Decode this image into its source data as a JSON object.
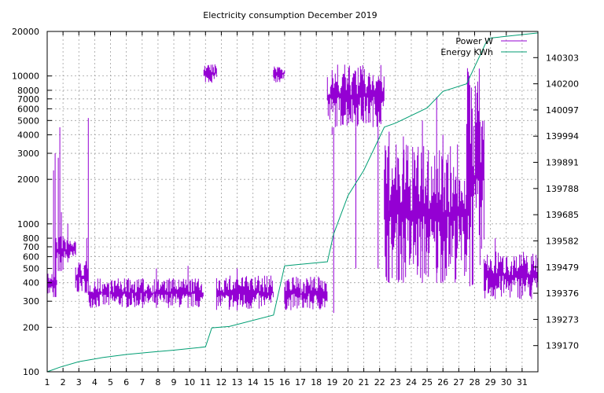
{
  "chart_data": {
    "type": "line",
    "title": "Electricity consumption December 2019",
    "x_ticks": [
      "1",
      "2",
      "3",
      "4",
      "5",
      "6",
      "7",
      "8",
      "9",
      "10",
      "11",
      "12",
      "13",
      "14",
      "15",
      "16",
      "17",
      "18",
      "19",
      "20",
      "21",
      "22",
      "23",
      "24",
      "25",
      "26",
      "27",
      "28",
      "29",
      "30",
      "31"
    ],
    "xlim": [
      1,
      32
    ],
    "y_left": {
      "scale": "log",
      "ylim": [
        100,
        20000
      ],
      "ticks": [
        100,
        200,
        300,
        400,
        500,
        600,
        700,
        800,
        1000,
        2000,
        3000,
        4000,
        5000,
        6000,
        7000,
        8000,
        10000,
        20000
      ],
      "tick_labels": [
        "100",
        "200",
        "300",
        "400",
        "500",
        "600",
        "700",
        "800",
        "1000",
        "2000",
        "3000",
        "4000",
        "5000",
        "6000",
        "7000",
        "8000",
        "10000",
        "20000"
      ]
    },
    "y_right": {
      "scale": "linear",
      "ylim": [
        139067,
        140406
      ],
      "ticks": [
        139170,
        139273,
        139376,
        139479,
        139582,
        139685,
        139788,
        139891,
        139994,
        140097,
        140200,
        140303
      ],
      "tick_labels": [
        "139170",
        "139273",
        "139376",
        "139479",
        "139582",
        "139685",
        "139788",
        "139891",
        "139994",
        "140097",
        "140200",
        "140303"
      ]
    },
    "grid": true,
    "legend_position": "top-right",
    "series": [
      {
        "name": "Power W",
        "axis": "left",
        "color": "#9400d3",
        "segments": [
          {
            "x0": 1.0,
            "x1": 1.6,
            "lo": 320,
            "hi": 480,
            "spikes": [
              [
                1.4,
                2300
              ],
              [
                1.5,
                3000
              ],
              [
                1.55,
                800
              ]
            ]
          },
          {
            "x0": 1.6,
            "x1": 2.0,
            "lo": 480,
            "hi": 900,
            "spikes": [
              [
                1.7,
                2800
              ],
              [
                1.8,
                4500
              ],
              [
                1.9,
                1200
              ]
            ]
          },
          {
            "x0": 2.0,
            "x1": 2.8,
            "lo": 550,
            "hi": 800,
            "spikes": [
              [
                2.3,
                1000
              ]
            ]
          },
          {
            "x0": 2.8,
            "x1": 3.6,
            "lo": 340,
            "hi": 560,
            "spikes": [
              [
                3.5,
                800
              ],
              [
                3.6,
                5200
              ]
            ]
          },
          {
            "x0": 3.6,
            "x1": 10.9,
            "lo": 270,
            "hi": 430,
            "spikes": [
              [
                7.9,
                500
              ],
              [
                9.9,
                520
              ]
            ]
          },
          {
            "x0": 10.9,
            "x1": 11.7,
            "lo": 9000,
            "hi": 12000,
            "spikes": []
          },
          {
            "x0": 11.7,
            "x1": 15.3,
            "lo": 260,
            "hi": 450,
            "spikes": [
              [
                13.0,
                500
              ]
            ]
          },
          {
            "x0": 15.3,
            "x1": 16.0,
            "lo": 9000,
            "hi": 12000,
            "spikes": []
          },
          {
            "x0": 16.0,
            "x1": 18.7,
            "lo": 260,
            "hi": 440,
            "spikes": []
          },
          {
            "x0": 18.7,
            "x1": 22.3,
            "lo": 4500,
            "hi": 12000,
            "spikes": [
              [
                19.0,
                4000
              ],
              [
                19.1,
                250
              ],
              [
                20.5,
                500
              ],
              [
                21.9,
                500
              ]
            ]
          },
          {
            "x0": 22.3,
            "x1": 27.5,
            "lo": 400,
            "hi": 3500,
            "spikes": [
              [
                22.6,
                4200
              ],
              [
                23.5,
                3900
              ],
              [
                24.7,
                5000
              ],
              [
                25.6,
                7200
              ],
              [
                26.0,
                4000
              ]
            ]
          },
          {
            "x0": 27.5,
            "x1": 28.6,
            "lo": 350,
            "hi": 12000,
            "spikes": []
          },
          {
            "x0": 28.6,
            "x1": 32.0,
            "lo": 310,
            "hi": 650,
            "spikes": [
              [
                29.3,
                800
              ],
              [
                31.6,
                500
              ]
            ]
          }
        ]
      },
      {
        "name": "Energy KWh",
        "axis": "right",
        "color": "#009e73",
        "x": [
          1.0,
          1.8,
          3.0,
          4.5,
          6.0,
          7.5,
          9.0,
          11.0,
          11.4,
          12.5,
          15.3,
          16.0,
          18.7,
          19.1,
          20.0,
          21.0,
          22.3,
          23.0,
          25.0,
          26.0,
          27.5,
          28.7,
          29.0,
          32.0
        ],
        "y": [
          139067,
          139085,
          139107,
          139123,
          139135,
          139144,
          139152,
          139165,
          139240,
          139245,
          139290,
          139484,
          139500,
          139610,
          139760,
          139860,
          140030,
          140045,
          140105,
          140170,
          140200,
          140360,
          140380,
          140400
        ]
      }
    ]
  }
}
